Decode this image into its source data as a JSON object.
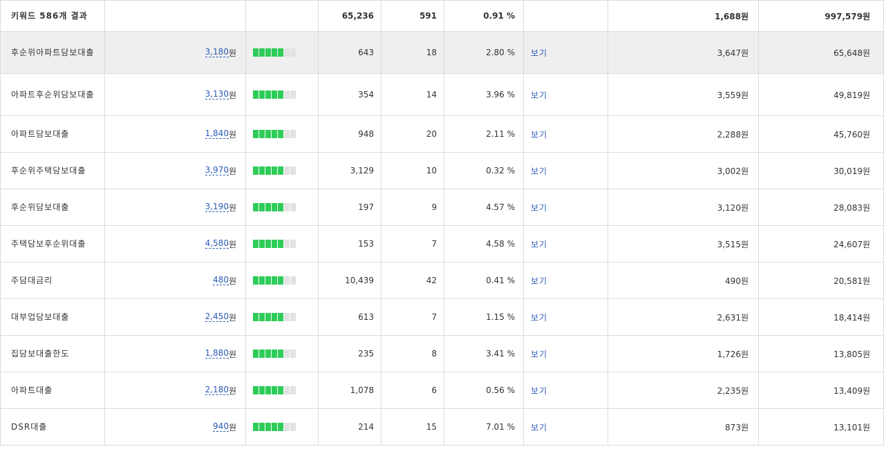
{
  "summary": {
    "label": "키워드 586개 결과",
    "impressions": "65,236",
    "clicks": "591",
    "ctr": "0.91 %",
    "cpc": "1,688원",
    "cost": "997,579원"
  },
  "unit_won": "원",
  "view_label": "보기",
  "colors": {
    "bar_on": "#2ecc58",
    "bar_off": "#e2e2e2",
    "link": "#2a5bb5",
    "highlight_row": "#efefef"
  },
  "rows": [
    {
      "keyword": "후순위아파트담보대출",
      "bid": "3,180",
      "level": 5,
      "impressions": "643",
      "clicks": "18",
      "ctr": "2.80 %",
      "cpc": "3,647원",
      "cost": "65,648원"
    },
    {
      "keyword": "아파트후순위담보대출",
      "bid": "3,130",
      "level": 5,
      "impressions": "354",
      "clicks": "14",
      "ctr": "3.96 %",
      "cpc": "3,559원",
      "cost": "49,819원"
    },
    {
      "keyword": "아파트담보대출",
      "bid": "1,840",
      "level": 5,
      "impressions": "948",
      "clicks": "20",
      "ctr": "2.11 %",
      "cpc": "2,288원",
      "cost": "45,760원"
    },
    {
      "keyword": "후순위주택담보대출",
      "bid": "3,970",
      "level": 5,
      "impressions": "3,129",
      "clicks": "10",
      "ctr": "0.32 %",
      "cpc": "3,002원",
      "cost": "30,019원"
    },
    {
      "keyword": "후순위담보대출",
      "bid": "3,190",
      "level": 5,
      "impressions": "197",
      "clicks": "9",
      "ctr": "4.57 %",
      "cpc": "3,120원",
      "cost": "28,083원"
    },
    {
      "keyword": "주택담보후순위대출",
      "bid": "4,580",
      "level": 5,
      "impressions": "153",
      "clicks": "7",
      "ctr": "4.58 %",
      "cpc": "3,515원",
      "cost": "24,607원"
    },
    {
      "keyword": "주담대금리",
      "bid": "480",
      "level": 5,
      "impressions": "10,439",
      "clicks": "42",
      "ctr": "0.41 %",
      "cpc": "490원",
      "cost": "20,581원"
    },
    {
      "keyword": "대부업담보대출",
      "bid": "2,450",
      "level": 5,
      "impressions": "613",
      "clicks": "7",
      "ctr": "1.15 %",
      "cpc": "2,631원",
      "cost": "18,414원"
    },
    {
      "keyword": "집담보대출한도",
      "bid": "1,880",
      "level": 5,
      "impressions": "235",
      "clicks": "8",
      "ctr": "3.41 %",
      "cpc": "1,726원",
      "cost": "13,805원"
    },
    {
      "keyword": "아파트대출",
      "bid": "2,180",
      "level": 5,
      "impressions": "1,078",
      "clicks": "6",
      "ctr": "0.56 %",
      "cpc": "2,235원",
      "cost": "13,409원"
    },
    {
      "keyword": "DSR대출",
      "bid": "940",
      "level": 5,
      "impressions": "214",
      "clicks": "15",
      "ctr": "7.01 %",
      "cpc": "873원",
      "cost": "13,101원"
    }
  ]
}
